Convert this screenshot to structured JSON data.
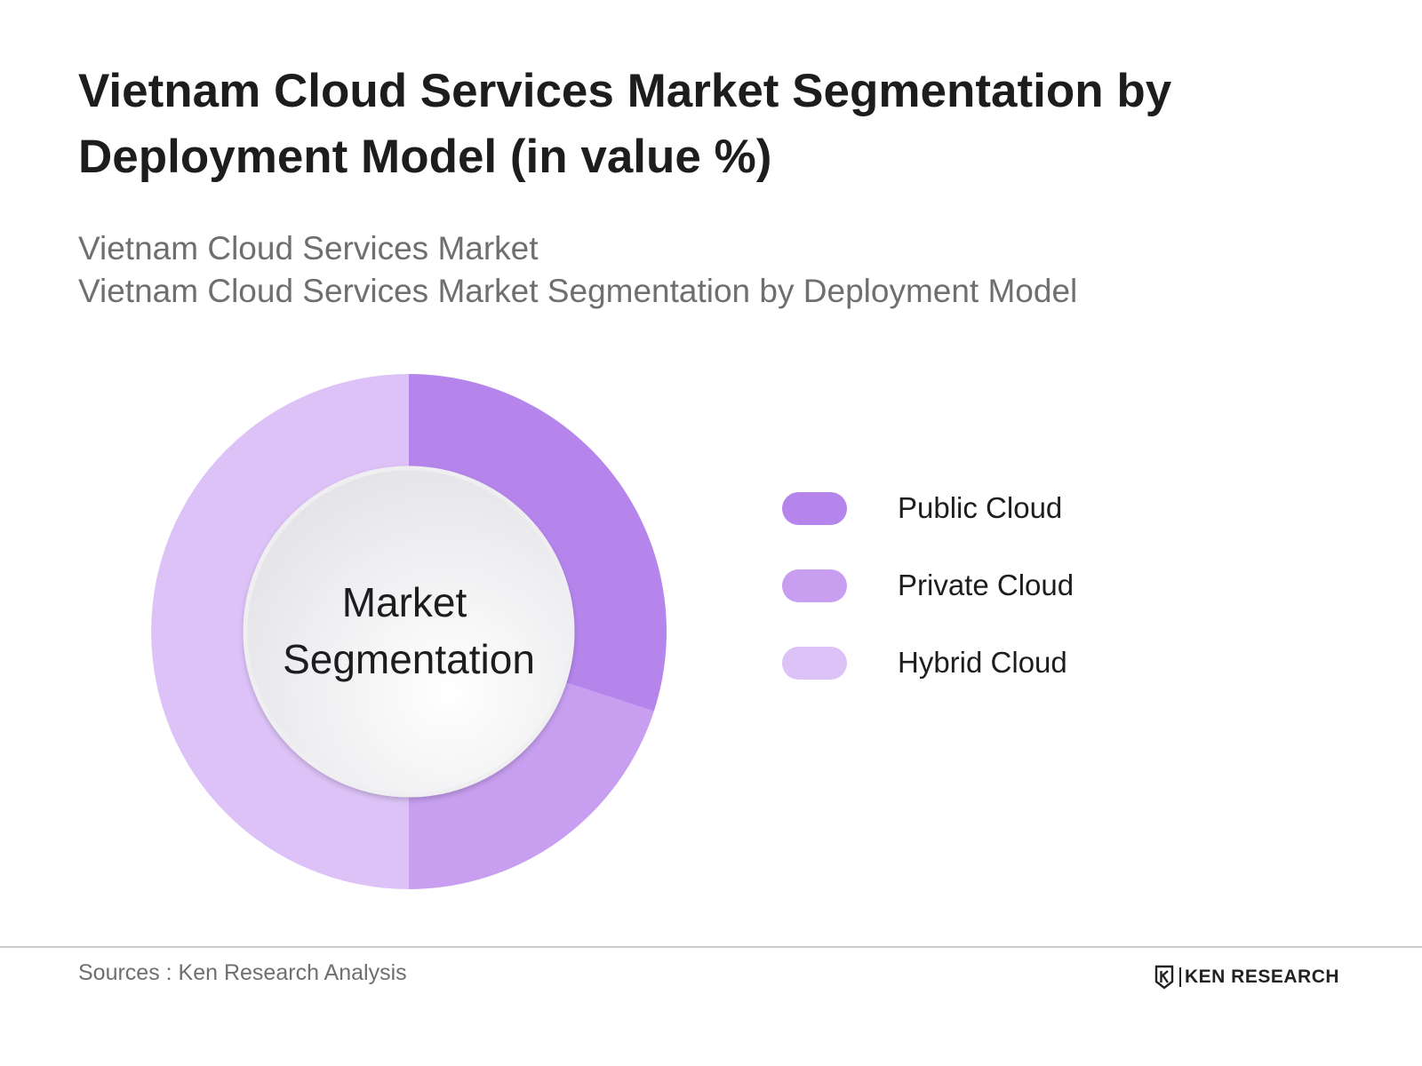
{
  "title": "Vietnam Cloud Services Market Segmentation by Deployment Model (in value %)",
  "subtitle_lines": [
    "Vietnam Cloud Services Market",
    "Vietnam Cloud Services Market Segmentation by Deployment Model"
  ],
  "chart_data": {
    "type": "pie",
    "variant": "donut",
    "center_label": [
      "Market",
      "Segmentation"
    ],
    "categories": [
      "Public Cloud",
      "Private Cloud",
      "Hybrid Cloud"
    ],
    "values": [
      30,
      20,
      50
    ],
    "colors": [
      "#b585ec",
      "#c79ef0",
      "#dcc2f7"
    ],
    "start": "12 o'clock, clockwise",
    "legend_position": "right"
  },
  "footer": {
    "source": "Sources : Ken Research Analysis",
    "logo": "KEN RESEARCH"
  }
}
